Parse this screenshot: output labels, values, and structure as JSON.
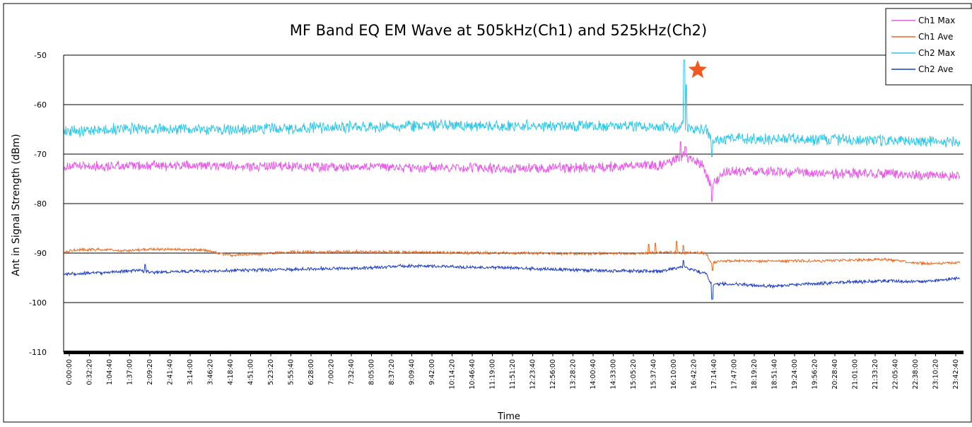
{
  "chart_data": {
    "type": "line",
    "title": "MF Band EQ EM Wave at 505kHz(Ch1) and 525kHz(Ch2)",
    "xlabel": "Time",
    "ylabel": "Ant in Signal Strength (dBm)",
    "ylim": [
      -110,
      -50
    ],
    "yticks": [
      -50,
      -60,
      -70,
      -80,
      -90,
      -100,
      -110
    ],
    "ytick_labels": [
      "-50",
      "-60",
      "-70",
      "-80",
      "-90",
      "-100",
      "-110"
    ],
    "xtick_labels": [
      "0:00:00",
      "0:32:20",
      "1:04:40",
      "1:37:00",
      "2:09:20",
      "2:41:40",
      "3:14:00",
      "3:46:20",
      "4:18:40",
      "4:51:00",
      "5:23:20",
      "5:55:40",
      "6:28:00",
      "7:00:20",
      "7:32:40",
      "8:05:00",
      "8:37:20",
      "9:09:40",
      "9:42:00",
      "10:14:20",
      "10:46:40",
      "11:19:00",
      "11:51:20",
      "12:23:40",
      "12:56:00",
      "13:28:20",
      "14:00:40",
      "14:33:00",
      "15:05:20",
      "15:37:40",
      "16:10:00",
      "16:42:20",
      "17:14:40",
      "17:47:00",
      "18:19:20",
      "18:51:40",
      "19:24:00",
      "19:56:20",
      "20:28:40",
      "21:01:00",
      "21:33:20",
      "22:05:40",
      "22:38:00",
      "23:10:20",
      "23:42:40"
    ],
    "grid": "horizontal",
    "legend_position": "top-right",
    "annotations": [
      {
        "type": "star",
        "x_hours": 16.98,
        "y": -53,
        "color": "#f05a22"
      }
    ],
    "series": [
      {
        "name": "Ch1 Max",
        "color": "#e859e8",
        "noise": 1.1,
        "points": [
          [
            0,
            -72.5
          ],
          [
            2,
            -72.3
          ],
          [
            4,
            -72.4
          ],
          [
            6,
            -72.5
          ],
          [
            8,
            -72.6
          ],
          [
            10,
            -72.8
          ],
          [
            12,
            -72.9
          ],
          [
            14,
            -72.8
          ],
          [
            16,
            -72.2
          ],
          [
            16.6,
            -70.5
          ],
          [
            17.1,
            -72
          ],
          [
            17.35,
            -76.5
          ],
          [
            17.7,
            -73.5
          ],
          [
            20,
            -73.8
          ],
          [
            22,
            -74
          ],
          [
            24,
            -74.5
          ]
        ],
        "spikes": [
          [
            16.52,
            -67.5
          ],
          [
            16.65,
            -68.5
          ],
          [
            17.36,
            -79.5
          ]
        ]
      },
      {
        "name": "Ch1 Ave",
        "color": "#ee6a1f",
        "noise": 0.3,
        "points": [
          [
            0,
            -89.8
          ],
          [
            0.4,
            -89.3
          ],
          [
            1.3,
            -89.3
          ],
          [
            1.6,
            -89.6
          ],
          [
            2.4,
            -89.2
          ],
          [
            3.8,
            -89.4
          ],
          [
            4.4,
            -90.4
          ],
          [
            5.2,
            -90.2
          ],
          [
            6,
            -89.8
          ],
          [
            8,
            -89.7
          ],
          [
            10,
            -89.9
          ],
          [
            14,
            -90.1
          ],
          [
            15.5,
            -90.1
          ],
          [
            16,
            -89.8
          ],
          [
            17.2,
            -90
          ],
          [
            17.35,
            -92
          ],
          [
            17.6,
            -91.6
          ],
          [
            20,
            -91.6
          ],
          [
            22,
            -91.3
          ],
          [
            23,
            -92.1
          ],
          [
            24,
            -92
          ]
        ],
        "spikes": [
          [
            15.67,
            -88.2
          ],
          [
            15.85,
            -88
          ],
          [
            16.42,
            -87.6
          ],
          [
            16.6,
            -88.5
          ],
          [
            17.38,
            -93.5
          ]
        ]
      },
      {
        "name": "Ch2 Max",
        "color": "#2ec8e8",
        "noise": 1.2,
        "points": [
          [
            0,
            -65.5
          ],
          [
            2,
            -64.8
          ],
          [
            4,
            -65
          ],
          [
            6,
            -64.8
          ],
          [
            8,
            -64.5
          ],
          [
            10,
            -64.2
          ],
          [
            12,
            -64.3
          ],
          [
            14,
            -64.3
          ],
          [
            16,
            -64.3
          ],
          [
            17.2,
            -65
          ],
          [
            17.35,
            -67.2
          ],
          [
            17.8,
            -66.8
          ],
          [
            20,
            -67
          ],
          [
            22,
            -67.3
          ],
          [
            24,
            -67.6
          ]
        ],
        "spikes": [
          [
            16.62,
            -51
          ],
          [
            16.67,
            -56
          ],
          [
            17.36,
            -70.5
          ]
        ]
      },
      {
        "name": "Ch2 Ave",
        "color": "#1b3bc8",
        "noise": 0.35,
        "points": [
          [
            0,
            -94.2
          ],
          [
            1,
            -94
          ],
          [
            2,
            -93.5
          ],
          [
            2.3,
            -93.9
          ],
          [
            4,
            -93.6
          ],
          [
            6,
            -93.3
          ],
          [
            8,
            -93
          ],
          [
            9,
            -92.6
          ],
          [
            10,
            -92.7
          ],
          [
            12,
            -93
          ],
          [
            14,
            -93.5
          ],
          [
            16,
            -93.7
          ],
          [
            16.6,
            -92.8
          ],
          [
            17.2,
            -94.2
          ],
          [
            17.35,
            -96.3
          ],
          [
            17.8,
            -96.2
          ],
          [
            19,
            -96.7
          ],
          [
            20,
            -96.2
          ],
          [
            22,
            -95.6
          ],
          [
            23,
            -95.8
          ],
          [
            24,
            -95
          ]
        ],
        "spikes": [
          [
            2.18,
            -92.3
          ],
          [
            16.6,
            -91.5
          ],
          [
            17.37,
            -99.3
          ]
        ]
      }
    ]
  }
}
